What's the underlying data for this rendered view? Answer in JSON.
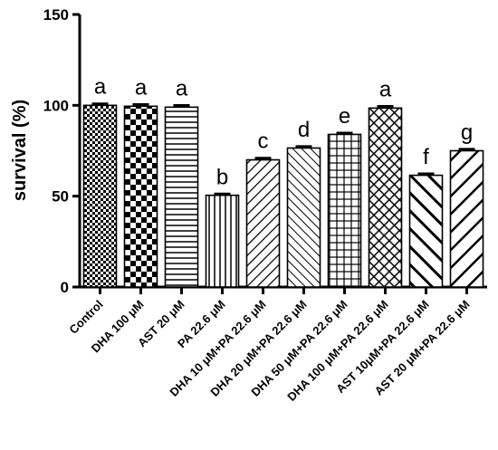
{
  "chart_data": {
    "type": "bar",
    "title": "",
    "xlabel": "",
    "ylabel": "survival (%)",
    "ylim": [
      0,
      150
    ],
    "yticks": [
      0,
      50,
      100,
      150
    ],
    "grid": false,
    "categories": [
      "Control",
      "DHA 100 μM",
      "AST 20 μM",
      "PA 22.6 μM",
      "DHA 10 μM+PA 22.6 μM",
      "DHA 20 μM+PA 22.6 μM",
      "DHA 50 μM+PA 22.6 μM",
      "DHA 100 μM+PA 22.6 μM",
      "AST 10μM+PA 22.6 μM",
      "AST 20 μM+PA 22.6 μM"
    ],
    "values": [
      100,
      99.5,
      99,
      50.5,
      70,
      76.5,
      84,
      98.5,
      61.5,
      75
    ],
    "errors": [
      0.8,
      0.9,
      0.9,
      0.7,
      0.9,
      0.8,
      0.7,
      0.9,
      0.8,
      0.8
    ],
    "labels": [
      "a",
      "a",
      "a",
      "b",
      "c",
      "d",
      "e",
      "a",
      "f",
      "g"
    ],
    "patterns": [
      "checker-small",
      "checker-large",
      "horizontal",
      "vertical",
      "diagonal-up",
      "diagonal-down",
      "grid",
      "crosshatch",
      "diagonal-down-wide",
      "diagonal-up-wide"
    ]
  }
}
